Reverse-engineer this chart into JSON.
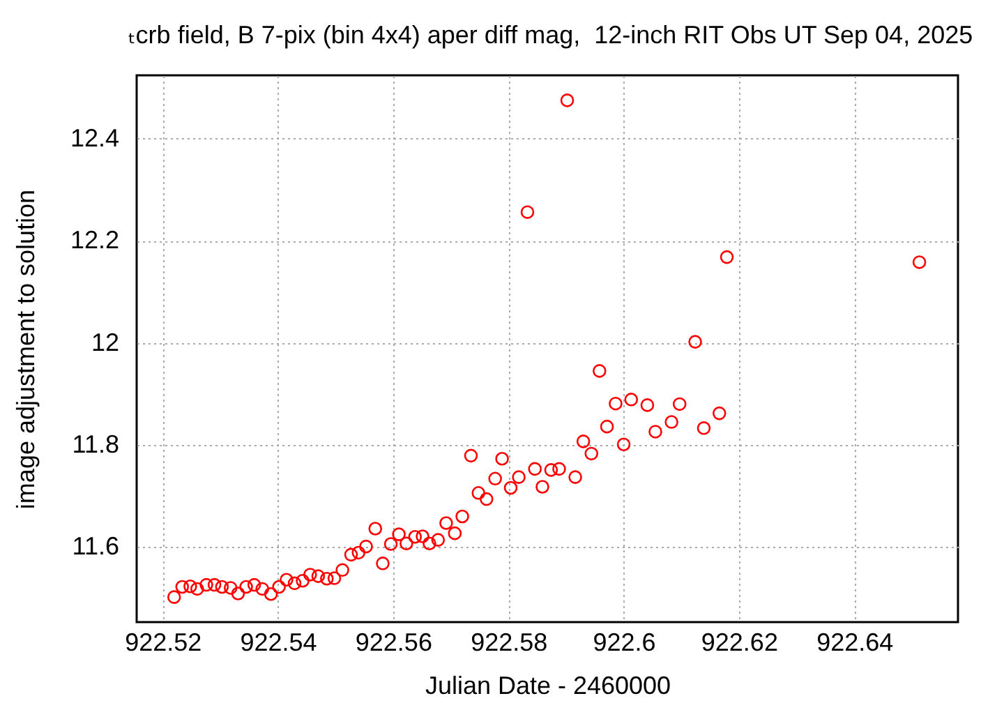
{
  "chart_data": {
    "type": "scatter",
    "title": "ₜcrb field, B 7-pix (bin 4x4) aper diff mag,  12-inch RIT Obs UT Sep 04, 2025",
    "xlabel": "Julian Date - 2460000",
    "ylabel": "image adjustment to solution",
    "x": [
      922.522,
      922.5234,
      922.5248,
      922.526,
      922.5276,
      922.529,
      922.5303,
      922.5318,
      922.5331,
      922.5345,
      922.5359,
      922.5373,
      922.5388,
      922.5402,
      922.5415,
      922.5429,
      922.5443,
      922.5456,
      922.547,
      922.5485,
      922.5498,
      922.5512,
      922.5527,
      922.554,
      922.5553,
      922.5569,
      922.5582,
      922.5596,
      922.561,
      922.5623,
      922.5638,
      922.5651,
      922.5663,
      922.5678,
      922.5692,
      922.5707,
      922.572,
      922.5735,
      922.5748,
      922.5762,
      922.5777,
      922.5789,
      922.5804,
      922.5818,
      922.5833,
      922.5846,
      922.5859,
      922.5874,
      922.5888,
      922.5902,
      922.5916,
      922.593,
      922.5944,
      922.5958,
      922.5971,
      922.5986,
      922.6,
      922.6013,
      922.6041,
      922.6055,
      922.6083,
      922.6097,
      922.6124,
      922.6139,
      922.6166,
      922.6179,
      922.6513
    ],
    "series": [
      {
        "color": "#ff0000",
        "values": [
          11.502,
          11.522,
          11.523,
          11.518,
          11.526,
          11.526,
          11.522,
          11.52,
          11.509,
          11.522,
          11.526,
          11.518,
          11.508,
          11.522,
          11.536,
          11.529,
          11.534,
          11.546,
          11.543,
          11.538,
          11.539,
          11.555,
          11.585,
          11.589,
          11.601,
          11.636,
          11.568,
          11.606,
          11.625,
          11.607,
          11.62,
          11.621,
          11.607,
          11.614,
          11.647,
          11.627,
          11.66,
          11.779,
          11.706,
          11.694,
          11.734,
          11.773,
          11.716,
          11.737,
          12.256,
          11.753,
          11.718,
          11.751,
          11.753,
          12.475,
          11.737,
          11.807,
          11.783,
          11.945,
          11.836,
          11.881,
          11.801,
          11.889,
          11.878,
          11.826,
          11.845,
          11.88,
          12.002,
          11.833,
          11.862,
          12.168,
          12.158
        ]
      }
    ],
    "xlim": [
      922.5155,
      922.658
    ],
    "ylim": [
      11.453,
      12.524
    ],
    "xticks": [
      922.52,
      922.54,
      922.56,
      922.58,
      922.6,
      922.62,
      922.64
    ],
    "yticks": [
      11.6,
      11.8,
      12,
      12.2,
      12.4
    ],
    "grid": true,
    "marker": "circle"
  }
}
